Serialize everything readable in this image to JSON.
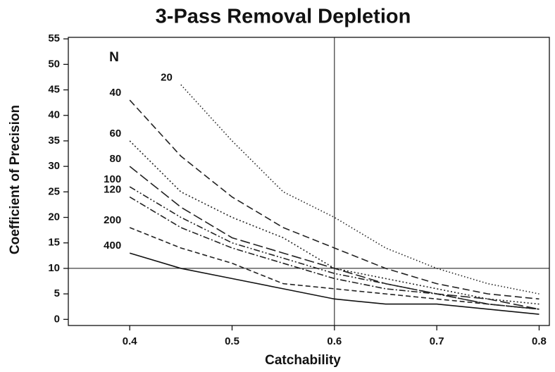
{
  "chart_data": {
    "type": "line",
    "title": "3-Pass Removal Depletion",
    "x_label": "Catchability",
    "y_label": "Coefficient of Precision",
    "legend_title": "N",
    "x": [
      0.4,
      0.45,
      0.5,
      0.55,
      0.6,
      0.65,
      0.7,
      0.75,
      0.8
    ],
    "series": [
      {
        "name": "20",
        "color": "#222222",
        "dash": "1.5,3",
        "values": [
          null,
          46,
          35,
          25,
          20,
          14,
          10,
          7,
          5
        ]
      },
      {
        "name": "40",
        "color": "#222222",
        "dash": "10,5",
        "values": [
          43,
          32,
          24,
          18,
          14,
          10,
          7,
          5,
          4
        ]
      },
      {
        "name": "60",
        "color": "#222222",
        "dash": "2,3",
        "values": [
          35,
          25,
          20,
          16,
          10,
          8,
          6,
          4,
          3
        ]
      },
      {
        "name": "80",
        "color": "#222222",
        "dash": "14,5",
        "values": [
          30,
          22,
          16,
          13,
          10,
          7,
          5,
          4,
          2
        ]
      },
      {
        "name": "100",
        "color": "#222222",
        "dash": "9,3,2,3,2,3",
        "values": [
          26,
          20,
          15,
          12,
          9,
          7,
          5,
          3,
          2
        ]
      },
      {
        "name": "120",
        "color": "#222222",
        "dash": "9,3,2,3",
        "values": [
          24,
          18,
          14,
          11,
          8,
          6,
          5,
          3,
          2
        ]
      },
      {
        "name": "200",
        "color": "#222222",
        "dash": "7,4",
        "values": [
          18,
          14,
          11,
          7,
          6,
          5,
          4,
          3,
          2
        ]
      },
      {
        "name": "400",
        "color": "#111111",
        "dash": "",
        "values": [
          13,
          10,
          8,
          6,
          4,
          3,
          3,
          2,
          1
        ]
      }
    ],
    "vlines": [
      0.6
    ],
    "hlines": [
      10
    ],
    "xlim": [
      0.34,
      0.81
    ],
    "ylim": [
      -1.2,
      55.3
    ],
    "xticks": [
      0.4,
      0.5,
      0.6,
      0.7,
      0.8
    ],
    "yticks": [
      0,
      5,
      10,
      15,
      20,
      25,
      30,
      35,
      40,
      45,
      50,
      55
    ]
  }
}
